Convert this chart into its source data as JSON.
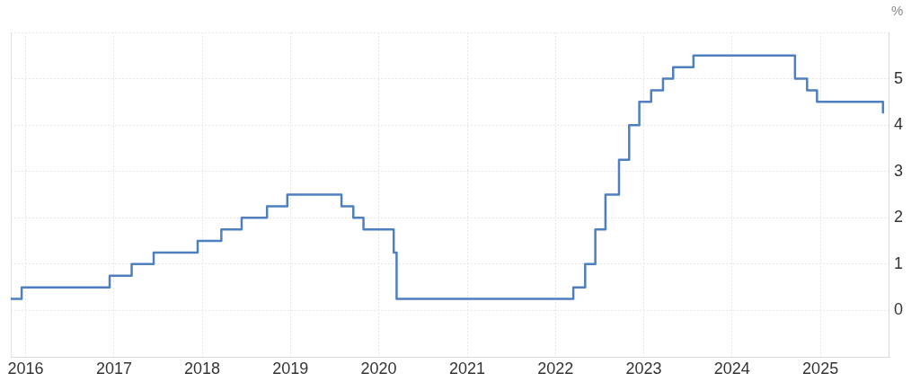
{
  "chart_data": {
    "type": "step",
    "ylabel": "%",
    "x": [
      "2015-11-01",
      "2015-12-16",
      "2016-12-14",
      "2017-03-15",
      "2017-06-14",
      "2017-12-13",
      "2018-03-21",
      "2018-06-13",
      "2018-09-26",
      "2018-12-19",
      "2019-07-31",
      "2019-09-18",
      "2019-10-30",
      "2020-03-03",
      "2020-03-15",
      "2022-03-16",
      "2022-05-04",
      "2022-06-15",
      "2022-07-27",
      "2022-09-21",
      "2022-11-02",
      "2022-12-14",
      "2023-02-01",
      "2023-03-22",
      "2023-05-03",
      "2023-07-26",
      "2024-09-18",
      "2024-11-07",
      "2024-12-18",
      "2025-09-17"
    ],
    "values": [
      0.25,
      0.5,
      0.75,
      1,
      1.25,
      1.5,
      1.75,
      2,
      2.25,
      2.5,
      2.25,
      2,
      1.75,
      1.25,
      0.25,
      0.5,
      1,
      1.75,
      2.5,
      3.25,
      4,
      4.5,
      4.75,
      5,
      5.25,
      5.5,
      5,
      4.75,
      4.5,
      4.25
    ],
    "color": "#4e7fc0",
    "xlim": [
      "2015-11-01",
      "2025-10-10"
    ],
    "xticks": [
      "2016",
      "2017",
      "2018",
      "2019",
      "2020",
      "2021",
      "2022",
      "2023",
      "2024",
      "2025"
    ],
    "ylim": [
      -1,
      6
    ],
    "yticks": [
      0,
      1,
      2,
      3,
      4,
      5,
      {
        "value": 6,
        "label": null
      }
    ],
    "grid": true
  }
}
